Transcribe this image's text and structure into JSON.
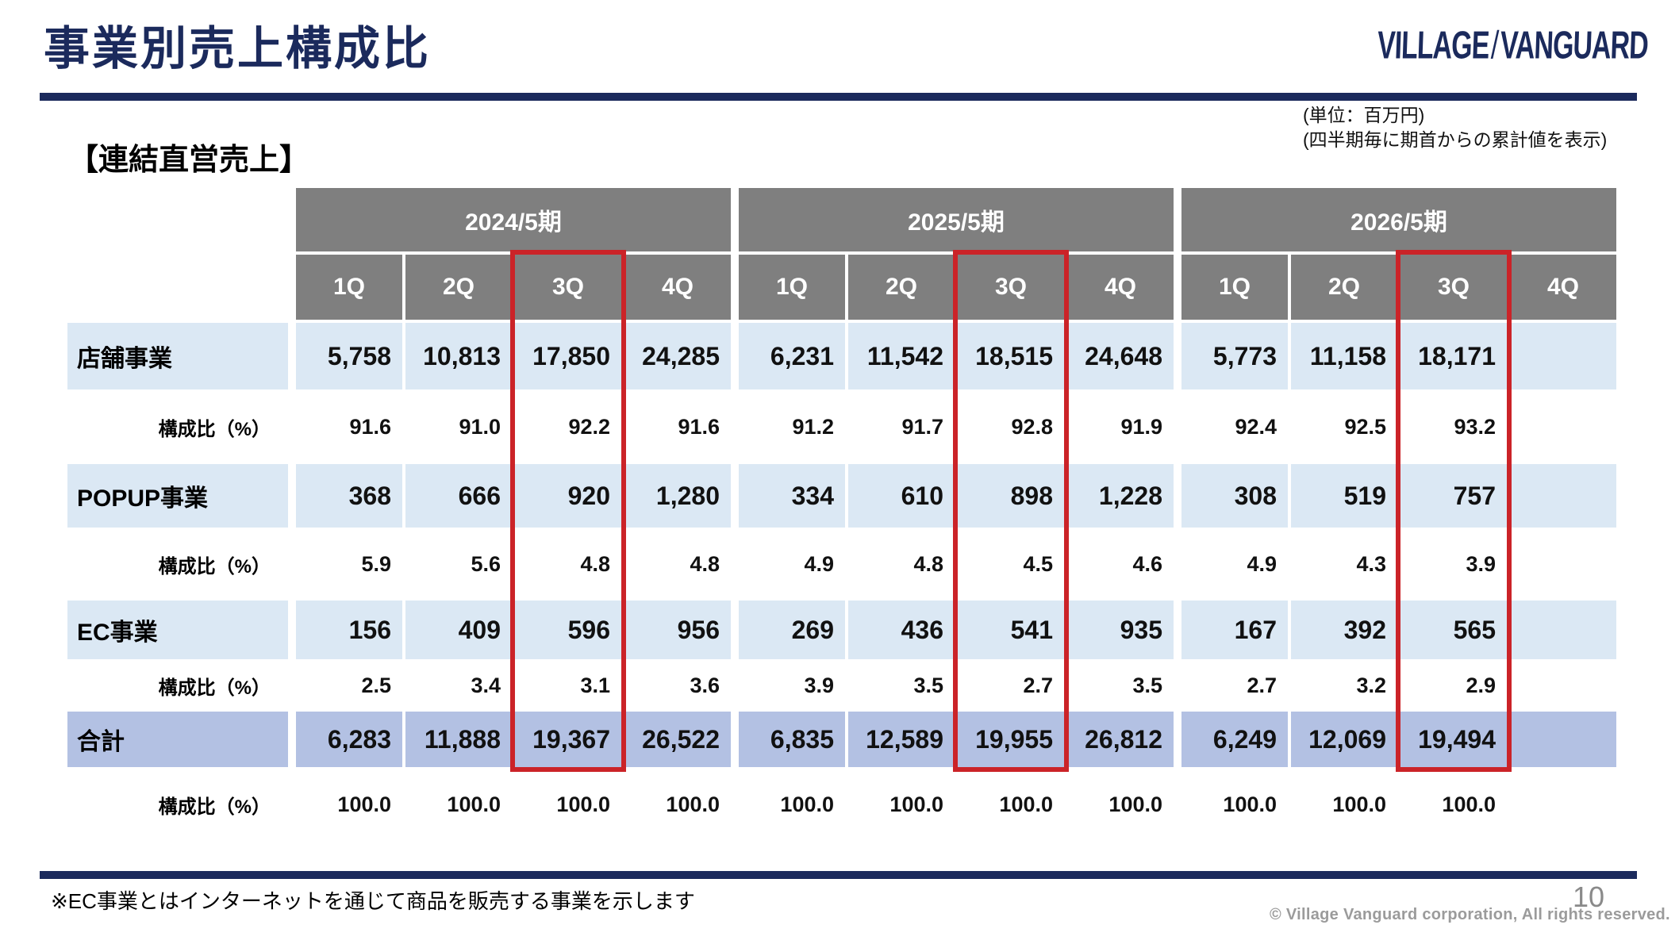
{
  "header": {
    "title": "事業別売上構成比",
    "logo": {
      "left": "VILLAGE",
      "slash": "/",
      "right": "VANGUARD"
    }
  },
  "notes": {
    "unit": "(単位：百万円)",
    "cumulative": "(四半期毎に期首からの累計値を表示)"
  },
  "section_label": "【連結直営売上】",
  "table": {
    "year_groups": [
      {
        "label": "2024/5期",
        "quarters": [
          "1Q",
          "2Q",
          "3Q",
          "4Q"
        ]
      },
      {
        "label": "2025/5期",
        "quarters": [
          "1Q",
          "2Q",
          "3Q",
          "4Q"
        ]
      },
      {
        "label": "2026/5期",
        "quarters": [
          "1Q",
          "2Q",
          "3Q",
          "4Q"
        ]
      }
    ],
    "rows": [
      {
        "label": "店舗事業",
        "type": "business",
        "values": [
          "5,758",
          "10,813",
          "17,850",
          "24,285",
          "6,231",
          "11,542",
          "18,515",
          "24,648",
          "5,773",
          "11,158",
          "18,171",
          ""
        ]
      },
      {
        "label": "構成比（%）",
        "type": "ratio",
        "values": [
          "91.6",
          "91.0",
          "92.2",
          "91.6",
          "91.2",
          "91.7",
          "92.8",
          "91.9",
          "92.4",
          "92.5",
          "93.2",
          ""
        ]
      },
      {
        "label": "POPUP事業",
        "type": "business",
        "values": [
          "368",
          "666",
          "920",
          "1,280",
          "334",
          "610",
          "898",
          "1,228",
          "308",
          "519",
          "757",
          ""
        ]
      },
      {
        "label": "構成比（%）",
        "type": "ratio",
        "values": [
          "5.9",
          "5.6",
          "4.8",
          "4.8",
          "4.9",
          "4.8",
          "4.5",
          "4.6",
          "4.9",
          "4.3",
          "3.9",
          ""
        ]
      },
      {
        "label": "EC事業",
        "type": "business",
        "values": [
          "156",
          "409",
          "596",
          "956",
          "269",
          "436",
          "541",
          "935",
          "167",
          "392",
          "565",
          ""
        ]
      },
      {
        "label": "構成比（%）",
        "type": "ratio",
        "values": [
          "2.5",
          "3.4",
          "3.1",
          "3.6",
          "3.9",
          "3.5",
          "2.7",
          "3.5",
          "2.7",
          "3.2",
          "2.9",
          ""
        ]
      },
      {
        "label": "合計",
        "type": "total",
        "values": [
          "6,283",
          "11,888",
          "19,367",
          "26,522",
          "6,835",
          "12,589",
          "19,955",
          "26,812",
          "6,249",
          "12,069",
          "19,494",
          ""
        ]
      },
      {
        "label": "構成比（%）",
        "type": "ratio",
        "values": [
          "100.0",
          "100.0",
          "100.0",
          "100.0",
          "100.0",
          "100.0",
          "100.0",
          "100.0",
          "100.0",
          "100.0",
          "100.0",
          ""
        ]
      }
    ]
  },
  "chart_data": {
    "type": "table",
    "title": "事業別売上構成比【連結直営売上】",
    "unit": "百万円",
    "note": "四半期毎に期首からの累計値を表示",
    "columns": [
      "2024/5期 1Q",
      "2024/5期 2Q",
      "2024/5期 3Q",
      "2024/5期 4Q",
      "2025/5期 1Q",
      "2025/5期 2Q",
      "2025/5期 3Q",
      "2025/5期 4Q",
      "2026/5期 1Q",
      "2026/5期 2Q",
      "2026/5期 3Q",
      "2026/5期 4Q"
    ],
    "rows": [
      {
        "name": "店舗事業",
        "sales": [
          5758,
          10813,
          17850,
          24285,
          6231,
          11542,
          18515,
          24648,
          5773,
          11158,
          18171,
          null
        ],
        "share_pct": [
          91.6,
          91.0,
          92.2,
          91.6,
          91.2,
          91.7,
          92.8,
          91.9,
          92.4,
          92.5,
          93.2,
          null
        ]
      },
      {
        "name": "POPUP事業",
        "sales": [
          368,
          666,
          920,
          1280,
          334,
          610,
          898,
          1228,
          308,
          519,
          757,
          null
        ],
        "share_pct": [
          5.9,
          5.6,
          4.8,
          4.8,
          4.9,
          4.8,
          4.5,
          4.6,
          4.9,
          4.3,
          3.9,
          null
        ]
      },
      {
        "name": "EC事業",
        "sales": [
          156,
          409,
          596,
          956,
          269,
          436,
          541,
          935,
          167,
          392,
          565,
          null
        ],
        "share_pct": [
          2.5,
          3.4,
          3.1,
          3.6,
          3.9,
          3.5,
          2.7,
          3.5,
          2.7,
          3.2,
          2.9,
          null
        ]
      },
      {
        "name": "合計",
        "sales": [
          6283,
          11888,
          19367,
          26522,
          6835,
          12589,
          19955,
          26812,
          6249,
          12069,
          19494,
          null
        ],
        "share_pct": [
          100.0,
          100.0,
          100.0,
          100.0,
          100.0,
          100.0,
          100.0,
          100.0,
          100.0,
          100.0,
          100.0,
          null
        ]
      }
    ],
    "highlighted_columns": [
      "2024/5期 3Q",
      "2025/5期 3Q",
      "2026/5期 3Q"
    ]
  },
  "footer": {
    "footnote": "※EC事業とはインターネットを通じて商品を販売する事業を示します",
    "copyright": "© Village Vanguard corporation, All rights reserved.",
    "page_number": "10"
  },
  "colors": {
    "navy": "#1b2a5c",
    "header_grey": "#7f7f7f",
    "row_light_blue": "#dbe8f4",
    "total_blue": "#b3c1e3",
    "highlight_red": "#cb2328"
  }
}
